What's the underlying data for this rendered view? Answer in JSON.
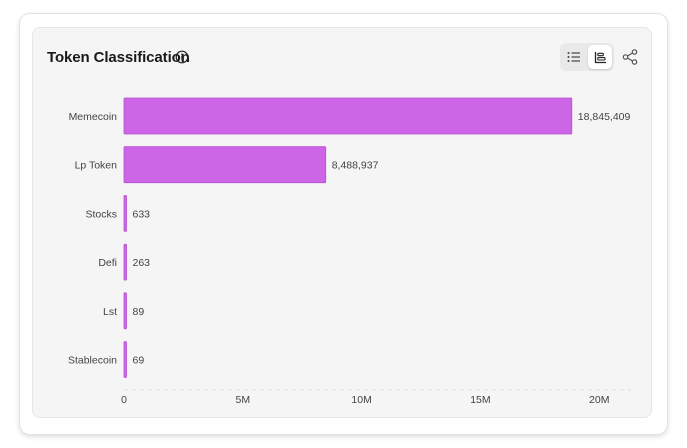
{
  "header": {
    "title": "Token Classification"
  },
  "colors": {
    "bar": "#cc66e6",
    "bar_stroke": "#b94fd4",
    "card_bg": "#f5f5f5"
  },
  "icons": {
    "info": "info-icon",
    "list_view": "list-icon",
    "chart_view": "bar-chart-icon",
    "share": "share-icon"
  },
  "chart_data": {
    "type": "bar",
    "orientation": "horizontal",
    "title": "Token Classification",
    "categories": [
      "Memecoin",
      "Lp Token",
      "Stocks",
      "Defi",
      "Lst",
      "Stablecoin"
    ],
    "values": [
      18845409,
      8488937,
      633,
      263,
      89,
      69
    ],
    "value_labels": [
      "18,845,409",
      "8,488,937",
      "633",
      "263",
      "89",
      "69"
    ],
    "xlim": [
      0,
      21000000
    ],
    "xticks": [
      0,
      5000000,
      10000000,
      15000000,
      20000000
    ],
    "xtick_labels": [
      "0",
      "5M",
      "10M",
      "15M",
      "20M"
    ],
    "grid": false,
    "legend": "none"
  }
}
